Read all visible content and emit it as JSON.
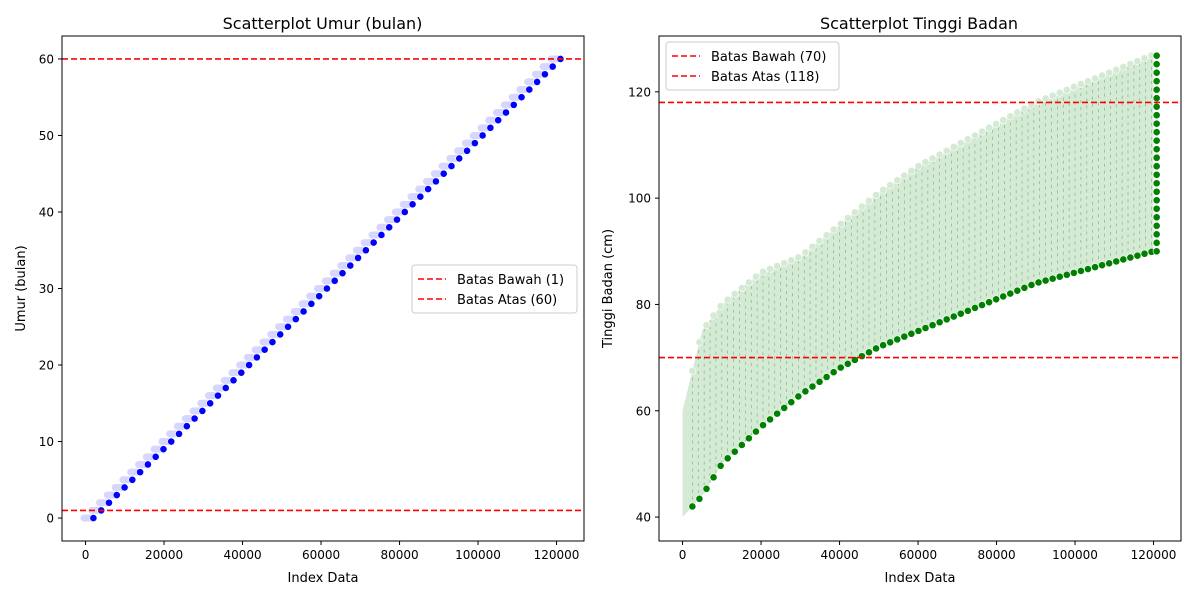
{
  "chart_data": [
    {
      "type": "scatter",
      "title": "Scatterplot Umur (bulan)",
      "xlabel": "Index Data",
      "ylabel": "Umur (bulan)",
      "xlim": [
        -6000,
        127000
      ],
      "ylim": [
        -3,
        63
      ],
      "xticks": [
        0,
        20000,
        40000,
        60000,
        80000,
        100000,
        120000
      ],
      "yticks": [
        0,
        10,
        20,
        30,
        40,
        50,
        60
      ],
      "point_color": "#0000ff",
      "point_color_faint": "#d6d6ff",
      "series": [
        {
          "name": "",
          "description_points": "index vs umur: umur increases linearly from 0 at index ~2000 to 60 at index ~121000, one dense cluster per month value",
          "x_start": 2000,
          "x_end": 121000,
          "y_start": 0,
          "y_end": 60
        }
      ],
      "hlines": [
        {
          "label": "Batas Bawah (1)",
          "y": 1,
          "color": "#ff0000",
          "style": "dashed"
        },
        {
          "label": "Batas Atas (60)",
          "y": 60,
          "color": "#ff0000",
          "style": "dashed"
        }
      ],
      "legend_position": "center-right"
    },
    {
      "type": "scatter",
      "title": "Scatterplot Tinggi Badan",
      "xlabel": "Index Data",
      "ylabel": "Tinggi Badan (cm)",
      "xlim": [
        -6000,
        127000
      ],
      "ylim": [
        35.5,
        130.5
      ],
      "xticks": [
        0,
        20000,
        40000,
        60000,
        80000,
        100000,
        120000
      ],
      "yticks": [
        40,
        60,
        80,
        100,
        120
      ],
      "point_color": "#008000",
      "point_color_faint": "#d4ead4",
      "band": {
        "x": [
          0,
          5000,
          10000,
          20000,
          30000,
          40000,
          50000,
          60000,
          70000,
          80000,
          90000,
          100000,
          110000,
          120000
        ],
        "lower": [
          40,
          44,
          50,
          57,
          63,
          68,
          72,
          75,
          78,
          81,
          84,
          86,
          88,
          90
        ],
        "upper": [
          60,
          75,
          80,
          86,
          89,
          95,
          101,
          106,
          110,
          114,
          118,
          121,
          124,
          127
        ]
      },
      "hlines": [
        {
          "label": "Batas Bawah (70)",
          "y": 70,
          "color": "#ff0000",
          "style": "dashed"
        },
        {
          "label": "Batas Atas (118)",
          "y": 118,
          "color": "#ff0000",
          "style": "dashed"
        }
      ],
      "legend_position": "top-left"
    }
  ]
}
